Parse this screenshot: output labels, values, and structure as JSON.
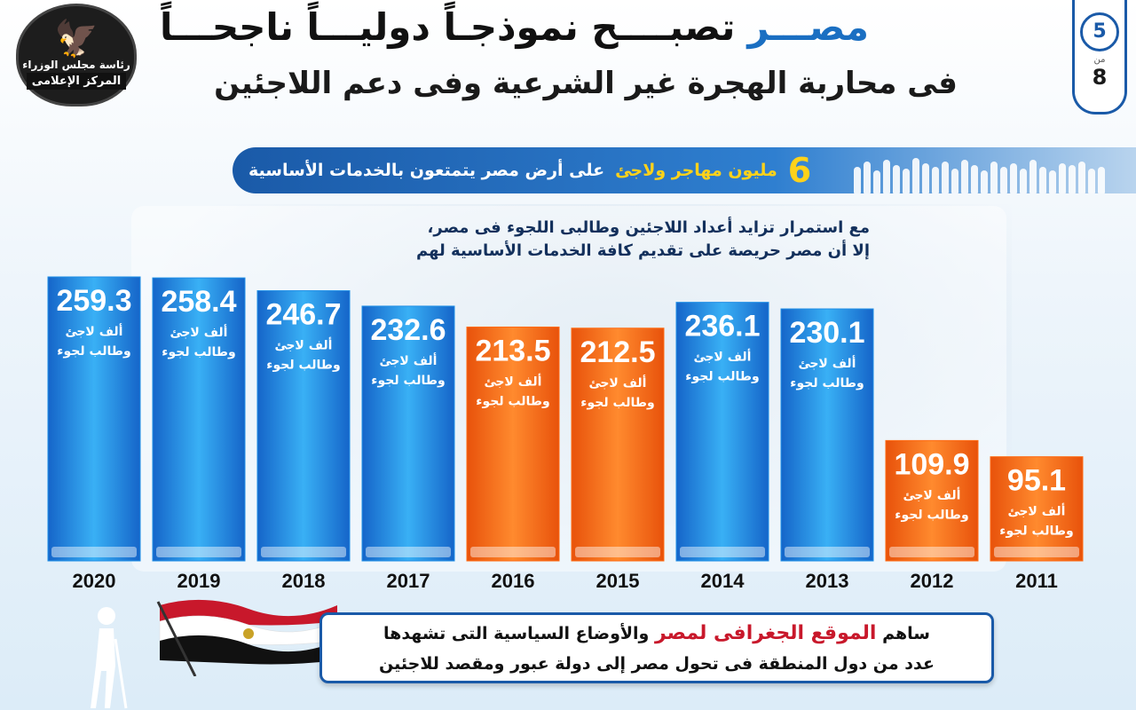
{
  "header": {
    "logo_text_top": "رئاسة مجلس الوزراء",
    "logo_text_bottom": "المركز الإعلامى",
    "title_word_1": "مصـــر",
    "title_rest": "تصبــــح نموذجـاً دوليـــاً ناجحـــاً",
    "title_line_2": "فى محاربة الهجرة غير الشرعية وفى دعم اللاجئين",
    "page_current": "5",
    "page_of": "من",
    "page_total": "8"
  },
  "banner": {
    "number": "6",
    "text_yellow": "مليون مهاجر ولاجئ",
    "text_white": "على أرض مصر يتمتعون بالخدمات الأساسية"
  },
  "subtitle": {
    "line_1": "مع استمرار تزايد أعداد اللاجئين وطالبى اللجوء فى مصر،",
    "line_2": "إلا أن مصر حريصة على تقديم كافة الخدمات الأساسية لهم"
  },
  "footer": {
    "pre": "ساهم",
    "red": "الموقع الجغرافى لمصر",
    "post": "والأوضاع السياسية التى تشهدها",
    "line_2": "عدد من دول المنطقة فى تحول مصر إلى دولة عبور ومقصد للاجئين"
  },
  "colors": {
    "blue_bar": "#1f8fe6",
    "orange_bar": "#ff6a12",
    "title_blue": "#1a6fc2",
    "accent_red": "#c8182b"
  },
  "chart_data": {
    "type": "bar",
    "title": "",
    "xlabel": "",
    "ylabel": "",
    "categories": [
      "2020",
      "2019",
      "2018",
      "2017",
      "2016",
      "2015",
      "2014",
      "2013",
      "2012",
      "2011"
    ],
    "values": [
      259.3,
      258.4,
      246.7,
      232.6,
      213.5,
      212.5,
      236.1,
      230.1,
      109.9,
      95.1
    ],
    "value_labels": [
      "259.3",
      "258.4",
      "246.7",
      "232.6",
      "213.5",
      "212.5",
      "236.1",
      "230.1",
      "109.9",
      "95.1"
    ],
    "bar_colors": [
      "blue",
      "blue",
      "blue",
      "blue",
      "orange",
      "orange",
      "blue",
      "blue",
      "orange",
      "orange"
    ],
    "bar_unit_line_1": "ألف لاجئ",
    "bar_unit_line_2": "وطالب لجوء",
    "ylim": [
      0,
      259.3
    ],
    "grid": false,
    "legend": "none"
  }
}
